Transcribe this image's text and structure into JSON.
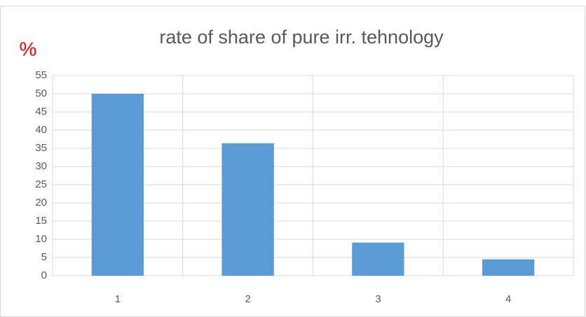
{
  "chart_data": {
    "type": "bar",
    "title": "rate of share of pure irr. tehnology",
    "ylabel": "%",
    "ylabel_color": "#ff0000",
    "categories": [
      "1",
      "2",
      "3",
      "4"
    ],
    "values": [
      50,
      36.4,
      9.1,
      4.5
    ],
    "color": "#5b9bd5",
    "ylim": [
      0,
      55
    ],
    "yticks": [
      0,
      5,
      10,
      15,
      20,
      25,
      30,
      35,
      40,
      45,
      50,
      55
    ],
    "grid": true
  }
}
